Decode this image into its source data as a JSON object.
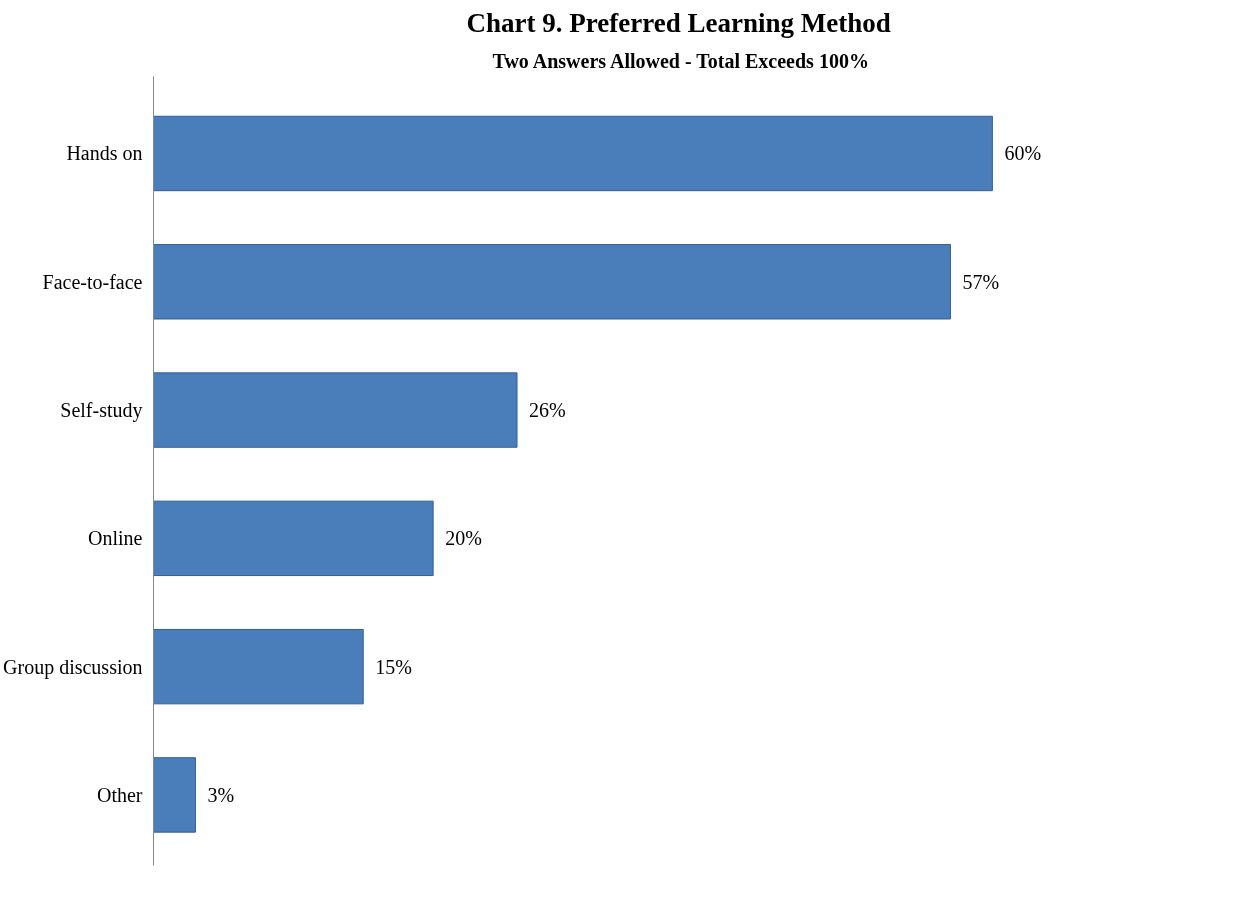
{
  "chart_data": {
    "type": "bar",
    "orientation": "horizontal",
    "title": "Chart 9. Preferred Learning  Method",
    "subtitle": "Two Answers Allowed - Total Exceeds 100%",
    "categories": [
      "Hands on",
      "Face-to-face",
      "Self-study",
      "Online",
      "Group discussion",
      "Other"
    ],
    "values": [
      60,
      57,
      26,
      20,
      15,
      3
    ],
    "value_labels": [
      "60%",
      "57%",
      "26%",
      "20%",
      "15%",
      "3%"
    ],
    "color": "#4a7ebb",
    "grid": false
  }
}
